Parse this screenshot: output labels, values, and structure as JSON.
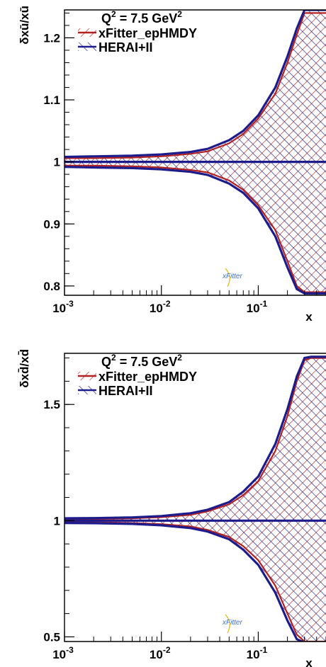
{
  "chart_data": [
    {
      "type": "area",
      "title": "Q² = 7.5 GeV²",
      "ylabel": "δxū/xū",
      "xlabel": "x",
      "x_scale": "log",
      "xlim": [
        0.001,
        0.5
      ],
      "ylim": [
        0.785,
        1.245
      ],
      "x_ticks": [
        0.001,
        0.01,
        0.1
      ],
      "x_tick_labels": [
        "10⁻³",
        "10⁻²",
        "10⁻¹"
      ],
      "y_ticks": [
        0.8,
        0.9,
        1.0,
        1.1,
        1.2
      ],
      "y_tick_labels": [
        "0.8",
        "0.9",
        "1",
        "1.1",
        "1.2"
      ],
      "grid": false,
      "legend": "top-left",
      "x": [
        0.001,
        0.002,
        0.005,
        0.01,
        0.02,
        0.03,
        0.05,
        0.07,
        0.1,
        0.15,
        0.2,
        0.25,
        0.3,
        0.35,
        0.4,
        0.5
      ],
      "series": [
        {
          "name": "xFitter_epHMDY",
          "color": "#b22222",
          "central": [
            1,
            1,
            1,
            1,
            1,
            1,
            1,
            1,
            1,
            1,
            1,
            1,
            1,
            1,
            1,
            1
          ],
          "upper": [
            1.006,
            1.006,
            1.007,
            1.009,
            1.013,
            1.017,
            1.03,
            1.045,
            1.07,
            1.11,
            1.16,
            1.205,
            1.24,
            1.24,
            1.24,
            1.24
          ],
          "lower": [
            0.994,
            0.994,
            0.993,
            0.991,
            0.987,
            0.983,
            0.97,
            0.955,
            0.93,
            0.89,
            0.84,
            0.8,
            0.79,
            0.79,
            0.79,
            0.79
          ]
        },
        {
          "name": "HERAI+II",
          "color": "#1c1c8c",
          "central": [
            1,
            1,
            1,
            1,
            1,
            1,
            1,
            1,
            1,
            1,
            1,
            1,
            1,
            1,
            1,
            1
          ],
          "upper": [
            1.008,
            1.009,
            1.01,
            1.012,
            1.016,
            1.021,
            1.035,
            1.05,
            1.075,
            1.12,
            1.17,
            1.215,
            1.245,
            1.245,
            1.245,
            1.245
          ],
          "lower": [
            0.992,
            0.991,
            0.99,
            0.988,
            0.984,
            0.979,
            0.965,
            0.95,
            0.925,
            0.88,
            0.83,
            0.795,
            0.788,
            0.788,
            0.788,
            0.788
          ]
        }
      ]
    },
    {
      "type": "area",
      "title": "Q² = 7.5 GeV²",
      "ylabel": "δxd̄/xd̄",
      "xlabel": "x",
      "x_scale": "log",
      "xlim": [
        0.001,
        0.5
      ],
      "ylim": [
        0.48,
        1.72
      ],
      "x_ticks": [
        0.001,
        0.01,
        0.1
      ],
      "x_tick_labels": [
        "10⁻³",
        "10⁻²",
        "10⁻¹"
      ],
      "y_ticks": [
        0.5,
        1.0,
        1.5
      ],
      "y_tick_labels": [
        "0.5",
        "1",
        "1.5"
      ],
      "grid": false,
      "legend": "top-left",
      "x": [
        0.001,
        0.002,
        0.005,
        0.01,
        0.02,
        0.03,
        0.05,
        0.07,
        0.1,
        0.15,
        0.2,
        0.25,
        0.3,
        0.35,
        0.4,
        0.5
      ],
      "series": [
        {
          "name": "xFitter_epHMDY",
          "color": "#b22222",
          "central": [
            1,
            1,
            1,
            1,
            1,
            1,
            1,
            1,
            1,
            1,
            1,
            1,
            1,
            1,
            1,
            1
          ],
          "upper": [
            1.006,
            1.007,
            1.01,
            1.015,
            1.025,
            1.04,
            1.07,
            1.11,
            1.17,
            1.3,
            1.45,
            1.6,
            1.69,
            1.7,
            1.7,
            1.7
          ],
          "lower": [
            0.994,
            0.993,
            0.99,
            0.985,
            0.975,
            0.96,
            0.93,
            0.89,
            0.83,
            0.72,
            0.6,
            0.51,
            0.48,
            0.48,
            0.48,
            0.48
          ]
        },
        {
          "name": "HERAI+II",
          "color": "#1c1c8c",
          "central": [
            1,
            1,
            1,
            1,
            1,
            1,
            1,
            1,
            1,
            1,
            1,
            1,
            1,
            1,
            1,
            1
          ],
          "upper": [
            1.01,
            1.011,
            1.014,
            1.02,
            1.032,
            1.047,
            1.08,
            1.125,
            1.19,
            1.33,
            1.48,
            1.62,
            1.7,
            1.705,
            1.705,
            1.705
          ],
          "lower": [
            0.99,
            0.989,
            0.986,
            0.98,
            0.968,
            0.953,
            0.92,
            0.875,
            0.81,
            0.69,
            0.57,
            0.49,
            0.475,
            0.475,
            0.475,
            0.475
          ]
        }
      ]
    }
  ],
  "logo_text": "xFitter"
}
